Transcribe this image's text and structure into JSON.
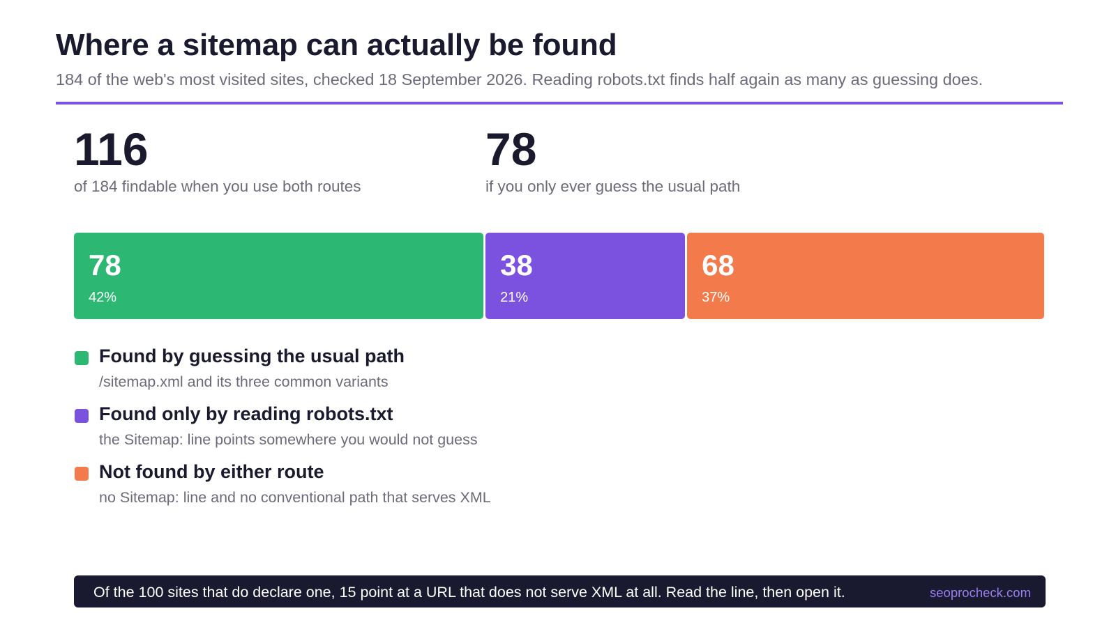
{
  "header": {
    "title": "Where a sitemap can actually be found",
    "subtitle": "184 of the web's most visited sites, checked 18 September 2026. Reading robots.txt finds half again as many as guessing does."
  },
  "stats": [
    {
      "value": "116",
      "caption": "of 184 findable when you use both routes"
    },
    {
      "value": "78",
      "caption": "if you only ever guess the usual path"
    }
  ],
  "chart_data": {
    "type": "bar",
    "orientation": "horizontal-stacked",
    "total": 184,
    "series": [
      {
        "name": "Found by guessing the usual path",
        "value": 78,
        "value_label": "78",
        "percent_label": "42%",
        "color": "#2cb872",
        "description": "/sitemap.xml and its three common variants"
      },
      {
        "name": "Found only by reading robots.txt",
        "value": 38,
        "value_label": "38",
        "percent_label": "21%",
        "color": "#7b52e0",
        "description": "the Sitemap: line points somewhere you would not guess"
      },
      {
        "name": "Not found by either route",
        "value": 68,
        "value_label": "68",
        "percent_label": "37%",
        "color": "#f27a4b",
        "description": "no Sitemap: line and no conventional path that serves XML"
      }
    ],
    "legend": "below"
  },
  "footer": {
    "text": "Of the 100 sites that do declare one, 15 point at a URL that does not serve XML at all. Read the line, then open it.",
    "site": "seoprocheck.com"
  },
  "colors": {
    "accent": "#7b52e0",
    "title": "#1a1a2e",
    "muted": "#6b6b7b",
    "footer_bg": "#191930",
    "footer_link": "#9d80f0"
  }
}
